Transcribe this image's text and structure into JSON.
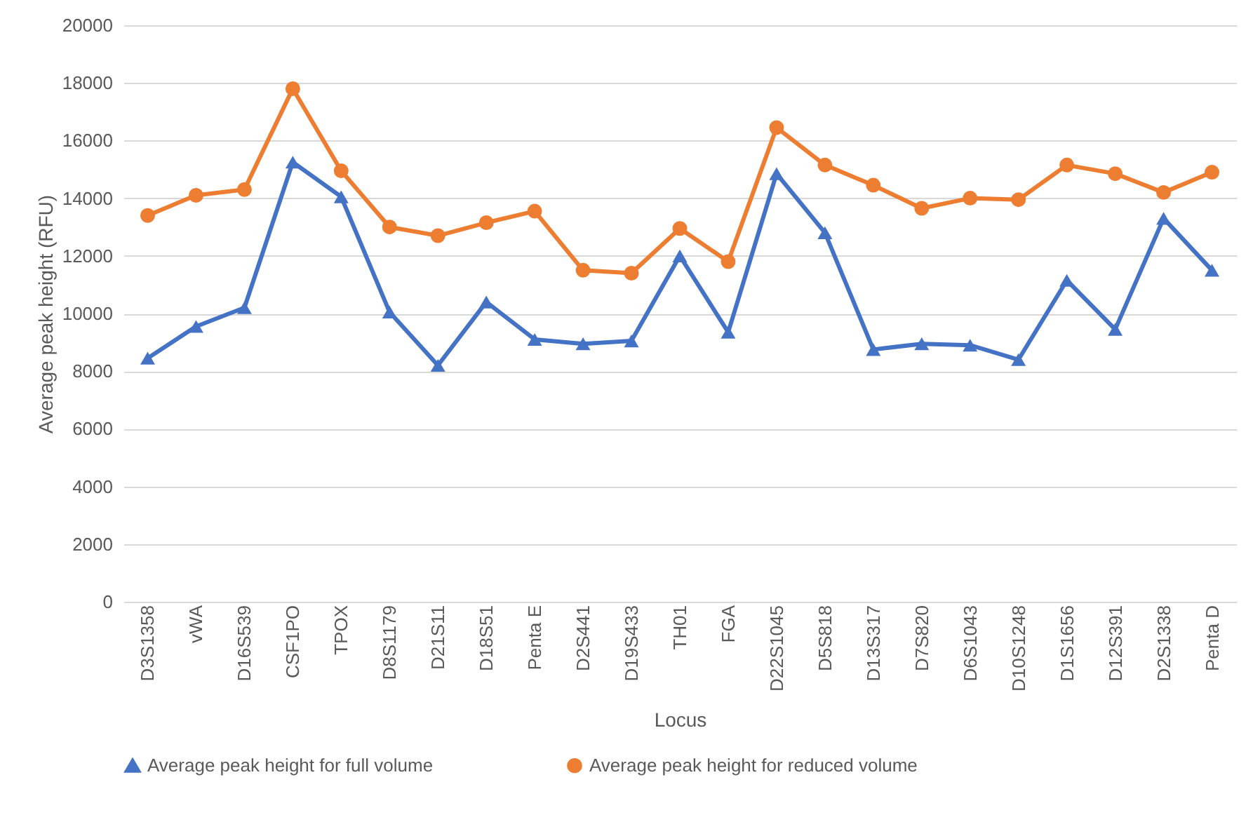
{
  "chart_data": {
    "type": "line",
    "xlabel": "Locus",
    "ylabel": "Average peak height (RFU)",
    "categories": [
      "D3S1358",
      "vWA",
      "D16S539",
      "CSF1PO",
      "TPOX",
      "D8S1179",
      "D21S11",
      "D18S51",
      "Penta E",
      "D2S441",
      "D19S433",
      "TH01",
      "FGA",
      "D22S1045",
      "D5S818",
      "D13S317",
      "D7S820",
      "D6S1043",
      "D10S1248",
      "D1S1656",
      "D12S391",
      "D2S1338",
      "Penta D"
    ],
    "series": [
      {
        "name": "Average peak height for full volume",
        "color": "#4472c4",
        "marker": "triangle",
        "values": [
          8450,
          9550,
          10200,
          15250,
          14050,
          10050,
          8200,
          10400,
          9100,
          8950,
          9050,
          12000,
          9350,
          14850,
          12800,
          8750,
          8950,
          8900,
          8400,
          11150,
          9450,
          13300,
          11500
        ]
      },
      {
        "name": "Average peak height for reduced volume",
        "color": "#ed7d31",
        "marker": "circle",
        "values": [
          13400,
          14100,
          14300,
          17800,
          14950,
          13000,
          12700,
          13150,
          13550,
          11500,
          11400,
          12950,
          11800,
          16450,
          15150,
          14450,
          13650,
          14000,
          13950,
          15150,
          14850,
          14200,
          14900
        ]
      }
    ],
    "ylim": [
      0,
      20000
    ],
    "yticks": [
      0,
      2000,
      4000,
      6000,
      8000,
      10000,
      12000,
      14000,
      16000,
      18000,
      20000
    ],
    "grid": "y",
    "legend": "bottom",
    "line_style": "solid"
  }
}
